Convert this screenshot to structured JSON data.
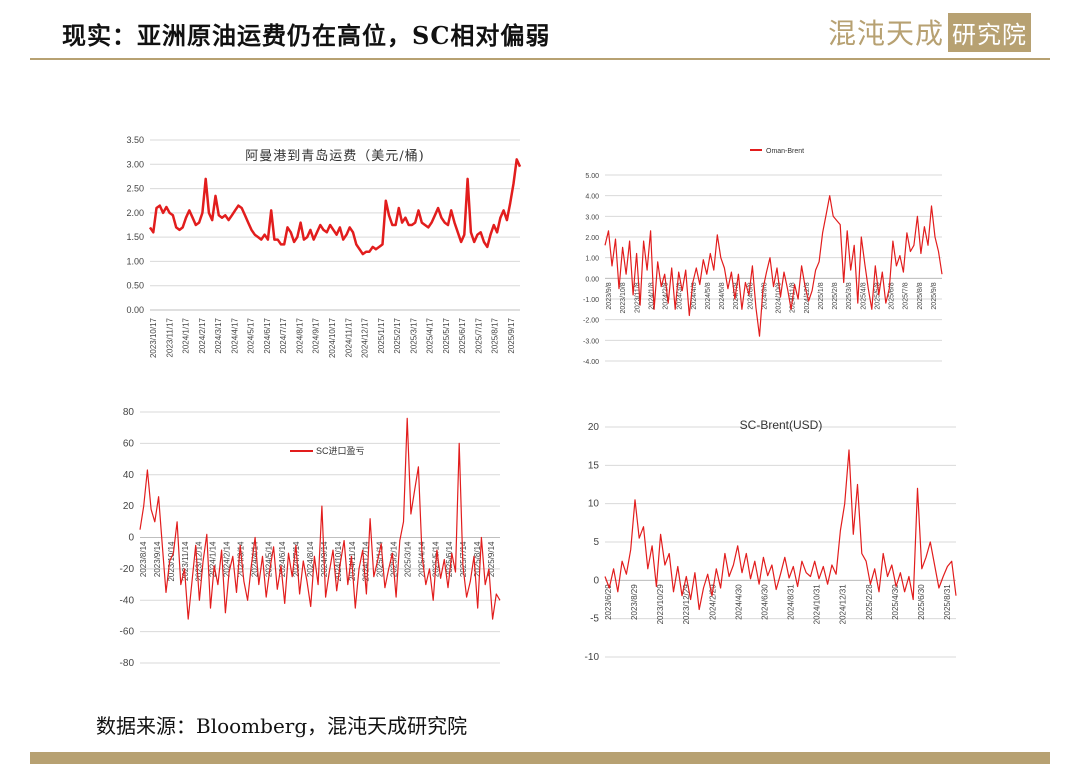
{
  "header": {
    "title": "现实：亚洲原油运费仍在高位，SC相对偏弱",
    "logo_text": "混沌天成",
    "logo_box_text": "研究院"
  },
  "footer": {
    "source": "数据来源：Bloomberg，混沌天成研究院"
  },
  "colors": {
    "accent": "#b7a172",
    "series": "#e21d1d",
    "grid": "#d9d9d9"
  },
  "chart_data": [
    {
      "type": "line",
      "title": "阿曼港到青岛运费（美元/桶)",
      "legend": "",
      "y_ticks": [
        "3.50",
        "3.00",
        "2.50",
        "2.00",
        "1.50",
        "1.00",
        "0.50",
        "0.00"
      ],
      "x_ticks": [
        "2023/10/17",
        "2023/11/17",
        "2024/1/17",
        "2024/2/17",
        "2024/3/17",
        "2024/4/17",
        "2024/5/17",
        "2024/6/17",
        "2024/7/17",
        "2024/8/17",
        "2024/9/17",
        "2024/10/17",
        "2024/11/17",
        "2024/12/17",
        "2025/1/17",
        "2025/2/17",
        "2025/3/17",
        "2025/4/17",
        "2025/5/17",
        "2025/6/17",
        "2025/7/17",
        "2025/8/17",
        "2025/9/17"
      ],
      "ylim": [
        0,
        3.5
      ],
      "values": [
        1.7,
        1.6,
        2.1,
        2.15,
        2.0,
        2.12,
        2.0,
        1.95,
        1.7,
        1.65,
        1.7,
        1.9,
        2.05,
        1.9,
        1.75,
        1.8,
        2.0,
        2.7,
        2.0,
        1.85,
        2.35,
        1.95,
        1.9,
        1.95,
        1.85,
        1.95,
        2.05,
        2.15,
        2.1,
        1.95,
        1.8,
        1.65,
        1.55,
        1.5,
        1.45,
        1.55,
        1.45,
        2.05,
        1.45,
        1.45,
        1.35,
        1.35,
        1.7,
        1.6,
        1.4,
        1.5,
        1.8,
        1.45,
        1.5,
        1.65,
        1.45,
        1.6,
        1.75,
        1.65,
        1.6,
        1.75,
        1.65,
        1.55,
        1.7,
        1.45,
        1.55,
        1.7,
        1.6,
        1.35,
        1.25,
        1.15,
        1.2,
        1.2,
        1.3,
        1.25,
        1.3,
        1.35,
        2.25,
        1.95,
        1.75,
        1.75,
        2.1,
        1.8,
        1.9,
        1.75,
        1.75,
        1.8,
        2.05,
        1.8,
        1.75,
        1.7,
        1.8,
        1.95,
        2.1,
        1.9,
        1.8,
        1.75,
        2.05,
        1.8,
        1.6,
        1.4,
        1.55,
        2.7,
        1.6,
        1.4,
        1.55,
        1.6,
        1.4,
        1.3,
        1.55,
        1.75,
        1.6,
        1.9,
        2.05,
        1.85,
        2.2,
        2.6,
        3.1,
        2.95
      ]
    },
    {
      "type": "line",
      "title": "",
      "legend": "Oman-Brent",
      "y_ticks": [
        "5.00",
        "4.00",
        "3.00",
        "2.00",
        "1.00",
        "0.00",
        "-1.00",
        "-2.00",
        "-3.00",
        "-4.00"
      ],
      "x_ticks": [
        "2023/9/8",
        "2023/10/8",
        "2023/11/8",
        "2024/1/8",
        "2024/2/8",
        "2024/3/8",
        "2024/4/8",
        "2024/5/8",
        "2024/6/8",
        "2024/7/8",
        "2024/8/8",
        "2024/9/8",
        "2024/10/8",
        "2024/11/8",
        "2024/12/8",
        "2025/1/8",
        "2025/2/8",
        "2025/3/8",
        "2025/4/8",
        "2025/5/8",
        "2025/6/8",
        "2025/7/8",
        "2025/8/8",
        "2025/9/8"
      ],
      "ylim": [
        -4,
        5
      ],
      "values": [
        1.6,
        2.3,
        0.6,
        1.9,
        -0.5,
        1.5,
        0.2,
        1.8,
        -0.8,
        1.2,
        -1.3,
        1.8,
        0.4,
        2.3,
        -1.5,
        0.8,
        -0.4,
        0.2,
        -1.2,
        0.5,
        -1.5,
        0.3,
        -0.6,
        0.4,
        -1.8,
        -0.2,
        0.5,
        -0.3,
        0.9,
        0.2,
        1.2,
        0.4,
        2.1,
        1.0,
        0.5,
        -0.5,
        0.3,
        -1.0,
        0.2,
        -1.5,
        -0.2,
        -0.8,
        0.6,
        -1.4,
        -2.8,
        -0.5,
        0.3,
        1.0,
        -0.4,
        0.5,
        -0.9,
        0.3,
        -0.5,
        -1.5,
        -0.3,
        -1.0,
        0.6,
        -0.4,
        -1.1,
        -0.6,
        0.4,
        0.8,
        2.2,
        3.1,
        4.0,
        3.0,
        2.8,
        2.6,
        -0.2,
        2.3,
        0.4,
        1.6,
        -1.2,
        2.0,
        0.7,
        -0.5,
        -1.5,
        0.6,
        -0.8,
        0.3,
        -1.2,
        -0.5,
        1.8,
        0.6,
        1.1,
        0.3,
        2.2,
        1.3,
        1.6,
        3.0,
        1.2,
        2.5,
        1.6,
        3.5,
        2.0,
        1.3,
        0.2
      ]
    },
    {
      "type": "line",
      "title": "",
      "legend": "SC进口盈亏",
      "y_ticks": [
        "80",
        "60",
        "40",
        "20",
        "0",
        "-20",
        "-40",
        "-60",
        "-80"
      ],
      "x_ticks": [
        "2023/8/14",
        "2023/9/14",
        "2023/10/14",
        "2023/11/14",
        "2023/12/14",
        "2024/1/14",
        "2024/2/14",
        "2024/3/14",
        "2024/4/14",
        "2024/5/14",
        "2024/6/14",
        "2024/7/14",
        "2024/8/14",
        "2024/9/14",
        "2024/10/14",
        "2024/11/14",
        "2024/12/14",
        "2025/1/14",
        "2025/2/14",
        "2025/3/14",
        "2025/4/14",
        "2025/5/14",
        "2025/6/14",
        "2025/7/14",
        "2025/8/14",
        "2025/9/14"
      ],
      "ylim": [
        -80,
        80
      ],
      "values": [
        5,
        20,
        43,
        18,
        10,
        26,
        -5,
        -35,
        -15,
        -10,
        10,
        -30,
        -20,
        -52,
        -28,
        -5,
        -40,
        -15,
        2,
        -45,
        -18,
        -30,
        -8,
        -48,
        -22,
        -12,
        -35,
        -5,
        -28,
        -40,
        -18,
        0,
        -30,
        -12,
        -38,
        -20,
        -6,
        -33,
        -18,
        -42,
        -10,
        -25,
        -5,
        -36,
        -15,
        -28,
        -44,
        -12,
        -30,
        20,
        -38,
        -22,
        -8,
        -34,
        -16,
        -2,
        -30,
        -12,
        -45,
        -20,
        -8,
        -36,
        12,
        -25,
        -15,
        -4,
        -32,
        -20,
        -10,
        -38,
        -2,
        10,
        76,
        15,
        30,
        45,
        -12,
        -30,
        -20,
        -40,
        -8,
        -26,
        -14,
        -32,
        -10,
        -22,
        60,
        -18,
        -38,
        -28,
        -12,
        -45,
        0,
        -30,
        -20,
        -52,
        -36,
        -40
      ]
    },
    {
      "type": "line",
      "title": "SC-Brent(USD)",
      "legend": "",
      "y_ticks": [
        "20",
        "15",
        "10",
        "5",
        "0",
        "-5",
        "-10"
      ],
      "x_ticks": [
        "2023/6/29",
        "2023/8/29",
        "2023/10/29",
        "2023/12/29",
        "2024/2/29",
        "2024/4/30",
        "2024/6/30",
        "2024/8/31",
        "2024/10/31",
        "2024/12/31",
        "2025/2/28",
        "2025/4/30",
        "2025/6/30",
        "2025/8/31"
      ],
      "ylim": [
        -10,
        20
      ],
      "values": [
        0.5,
        -1.0,
        1.5,
        -1.5,
        2.5,
        0.8,
        4.0,
        10.5,
        5.5,
        7.0,
        1.5,
        4.5,
        -0.8,
        6.0,
        2.0,
        3.5,
        -1.5,
        1.8,
        -2.0,
        0.5,
        -2.5,
        1.0,
        -3.8,
        -1.0,
        0.8,
        -2.0,
        1.5,
        -1.0,
        3.5,
        0.5,
        2.0,
        4.5,
        1.0,
        3.5,
        0.2,
        2.5,
        -0.5,
        3.0,
        0.6,
        2.0,
        -1.2,
        0.8,
        3.0,
        0.3,
        1.8,
        -0.8,
        2.5,
        1.0,
        0.5,
        2.5,
        0.2,
        1.8,
        -0.5,
        2.0,
        0.8,
        6.5,
        10.0,
        17.0,
        6.0,
        12.5,
        3.5,
        2.5,
        -0.5,
        1.5,
        -1.5,
        3.5,
        0.5,
        2.0,
        -0.8,
        1.0,
        -1.5,
        0.5,
        -2.5,
        12.0,
        1.5,
        3.0,
        5.0,
        2.0,
        -1.0,
        0.5,
        1.8,
        2.5,
        -2.0
      ]
    }
  ]
}
